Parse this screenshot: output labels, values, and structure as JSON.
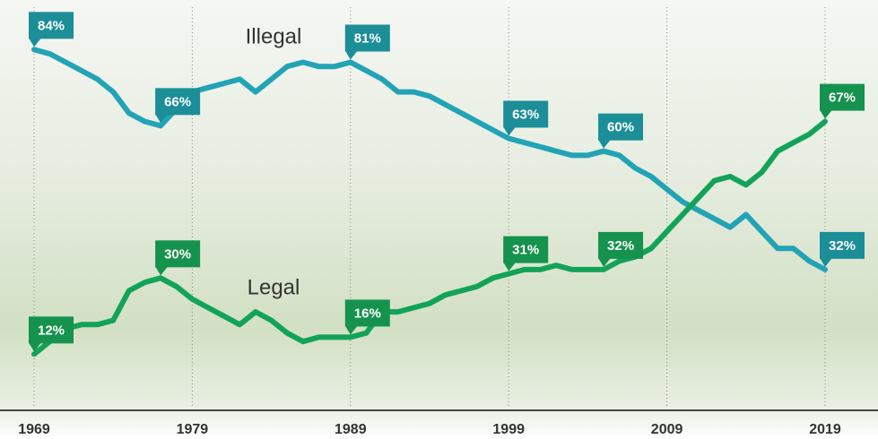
{
  "chart_data": {
    "type": "line",
    "x": [
      1969,
      1970,
      1971,
      1972,
      1973,
      1974,
      1975,
      1976,
      1977,
      1978,
      1979,
      1980,
      1981,
      1982,
      1983,
      1984,
      1985,
      1986,
      1987,
      1988,
      1989,
      1990,
      1991,
      1992,
      1993,
      1994,
      1995,
      1996,
      1997,
      1998,
      1999,
      2000,
      2001,
      2002,
      2003,
      2004,
      2005,
      2006,
      2007,
      2008,
      2009,
      2010,
      2011,
      2012,
      2013,
      2014,
      2015,
      2016,
      2017,
      2018,
      2019
    ],
    "series": [
      {
        "name": "Illegal",
        "color": "#22a3b6",
        "label_color": "#1c8e98",
        "values": [
          84,
          83,
          81,
          79,
          77,
          74,
          69,
          67,
          66,
          70,
          74,
          75,
          76,
          77,
          74,
          77,
          80,
          81,
          80,
          80,
          81,
          79,
          77,
          74,
          74,
          73,
          71,
          69,
          67,
          65,
          63,
          62,
          61,
          60,
          59,
          59,
          60,
          59,
          56,
          54,
          51,
          48,
          46,
          44,
          42,
          45,
          41,
          37,
          37,
          34,
          32
        ],
        "value_labels": [
          "84%",
          null,
          null,
          null,
          null,
          null,
          null,
          null,
          "66%",
          null,
          null,
          null,
          null,
          null,
          null,
          null,
          null,
          null,
          null,
          null,
          "81%",
          null,
          null,
          null,
          null,
          null,
          null,
          null,
          null,
          null,
          "63%",
          null,
          null,
          null,
          null,
          null,
          "60%",
          null,
          null,
          null,
          null,
          null,
          null,
          null,
          null,
          null,
          null,
          null,
          null,
          null,
          "32%"
        ]
      },
      {
        "name": "Legal",
        "color": "#12a358",
        "label_color": "#15924d",
        "values": [
          12,
          15,
          18,
          19,
          19,
          20,
          27,
          29,
          30,
          28,
          25,
          23,
          21,
          19,
          22,
          20,
          17,
          15,
          16,
          16,
          16,
          17,
          22,
          22,
          23,
          24,
          26,
          27,
          28,
          30,
          31,
          32,
          32,
          33,
          32,
          32,
          32,
          34,
          35,
          37,
          41,
          45,
          49,
          53,
          54,
          52,
          55,
          60,
          62,
          64,
          67
        ],
        "value_labels": [
          "12%",
          null,
          null,
          null,
          null,
          null,
          null,
          null,
          "30%",
          null,
          null,
          null,
          null,
          null,
          null,
          null,
          null,
          null,
          null,
          null,
          "16%",
          null,
          null,
          null,
          null,
          null,
          null,
          null,
          null,
          null,
          "31%",
          null,
          null,
          null,
          null,
          null,
          "32%",
          null,
          null,
          null,
          null,
          null,
          null,
          null,
          null,
          null,
          null,
          null,
          null,
          null,
          "67%"
        ]
      }
    ],
    "xlim": [
      1969,
      2019
    ],
    "xticks": [
      1969,
      1979,
      1989,
      1999,
      2009,
      2019
    ],
    "ylim": [
      0,
      90
    ],
    "grid": true
  }
}
